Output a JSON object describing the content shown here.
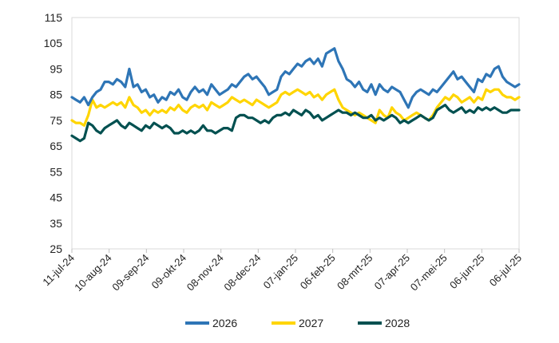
{
  "chart_data": {
    "type": "line",
    "title": "",
    "xlabel": "",
    "ylabel": "",
    "ylim": [
      25,
      115
    ],
    "yticks": [
      25,
      35,
      45,
      55,
      65,
      75,
      85,
      95,
      105,
      115
    ],
    "grid": false,
    "legend": "bottom",
    "x_tick_labels": [
      "11-jul-24",
      "10-aug-24",
      "09-sep-24",
      "09-okt-24",
      "08-nov-24",
      "08-dec-24",
      "07-jan-25",
      "06-feb-25",
      "08-mrt-25",
      "07-apr-25",
      "07-mei-25",
      "06-jun-25",
      "06-jul-25"
    ],
    "x": [
      "11-jul-24",
      "15-jul-24",
      "18-jul-24",
      "21-jul-24",
      "25-jul-24",
      "28-jul-24",
      "01-aug-24",
      "04-aug-24",
      "07-aug-24",
      "10-aug-24",
      "14-aug-24",
      "17-aug-24",
      "20-aug-24",
      "24-aug-24",
      "27-aug-24",
      "31-aug-24",
      "03-sep-24",
      "06-sep-24",
      "09-sep-24",
      "13-sep-24",
      "16-sep-24",
      "19-sep-24",
      "23-sep-24",
      "26-sep-24",
      "29-sep-24",
      "03-okt-24",
      "06-okt-24",
      "09-okt-24",
      "13-okt-24",
      "16-okt-24",
      "19-okt-24",
      "23-okt-24",
      "26-okt-24",
      "30-okt-24",
      "02-nov-24",
      "05-nov-24",
      "08-nov-24",
      "12-nov-24",
      "15-nov-24",
      "18-nov-24",
      "22-nov-24",
      "25-nov-24",
      "28-nov-24",
      "02-dec-24",
      "05-dec-24",
      "08-dec-24",
      "12-dec-24",
      "15-dec-24",
      "19-dec-24",
      "22-dec-24",
      "25-dec-24",
      "29-dec-24",
      "01-jan-25",
      "04-jan-25",
      "07-jan-25",
      "11-jan-25",
      "14-jan-25",
      "17-jan-25",
      "21-jan-25",
      "24-jan-25",
      "27-jan-25",
      "31-jan-25",
      "03-feb-25",
      "06-feb-25",
      "10-feb-25",
      "13-feb-25",
      "17-feb-25",
      "20-feb-25",
      "23-feb-25",
      "27-feb-25",
      "02-mrt-25",
      "05-mrt-25",
      "08-mrt-25",
      "12-mrt-25",
      "15-mrt-25",
      "18-mrt-25",
      "22-mrt-25",
      "25-mrt-25",
      "28-mrt-25",
      "01-apr-25",
      "04-apr-25",
      "07-apr-25",
      "11-apr-25",
      "14-apr-25",
      "17-apr-25",
      "21-apr-25",
      "24-apr-25",
      "27-apr-25",
      "01-mei-25",
      "04-mei-25",
      "07-mei-25",
      "11-mei-25",
      "14-mei-25",
      "17-mei-25",
      "21-mei-25",
      "24-mei-25",
      "28-mei-25",
      "31-mei-25",
      "03-jun-25",
      "06-jun-25",
      "10-jun-25",
      "13-jun-25",
      "16-jun-25",
      "20-jun-25",
      "23-jun-25",
      "26-jun-25",
      "30-jun-25",
      "03-jul-25",
      "06-jul-25",
      "09-jul-25"
    ],
    "series": [
      {
        "name": "2026",
        "color": "#2E75B6",
        "values": [
          84,
          83,
          82,
          84,
          81,
          84,
          86,
          87,
          90,
          90,
          89,
          91,
          90,
          88,
          95,
          88,
          89,
          86,
          87,
          84,
          85,
          82,
          84,
          83,
          86,
          85,
          87,
          84,
          83,
          86,
          88,
          86,
          87,
          85,
          89,
          87,
          85,
          86,
          87,
          89,
          88,
          90,
          92,
          93,
          91,
          92,
          90,
          88,
          85,
          86,
          87,
          92,
          94,
          93,
          95,
          97,
          96,
          98,
          99,
          97,
          99,
          96,
          101,
          102,
          103,
          98,
          95,
          91,
          90,
          88,
          90,
          87,
          86,
          89,
          85,
          89,
          87,
          86,
          88,
          87,
          86,
          83,
          80,
          84,
          86,
          87,
          86,
          85,
          87,
          86,
          88,
          90,
          92,
          94,
          91,
          92,
          90,
          88,
          86,
          91,
          90,
          93,
          92,
          95,
          96,
          92,
          90,
          89,
          88,
          89
        ]
      },
      {
        "name": "2027",
        "color": "#FFD500",
        "values": [
          75,
          74,
          74,
          73,
          77,
          83,
          80,
          81,
          80,
          81,
          82,
          81,
          82,
          80,
          84,
          81,
          80,
          78,
          79,
          77,
          79,
          78,
          79,
          78,
          80,
          79,
          81,
          79,
          78,
          80,
          81,
          80,
          81,
          79,
          82,
          81,
          80,
          81,
          82,
          84,
          83,
          82,
          83,
          82,
          81,
          83,
          82,
          81,
          80,
          81,
          82,
          85,
          86,
          85,
          86,
          87,
          86,
          85,
          86,
          84,
          85,
          83,
          85,
          86,
          87,
          83,
          80,
          79,
          78,
          77,
          78,
          77,
          76,
          75,
          74,
          79,
          77,
          76,
          80,
          78,
          77,
          75,
          76,
          77,
          78,
          77,
          76,
          75,
          77,
          80,
          82,
          84,
          83,
          85,
          84,
          82,
          83,
          84,
          82,
          84,
          83,
          87,
          86,
          87,
          87,
          85,
          84,
          84,
          83,
          84
        ]
      },
      {
        "name": "2028",
        "color": "#005050",
        "values": [
          69,
          68,
          67,
          68,
          74,
          73,
          71,
          70,
          72,
          73,
          74,
          75,
          73,
          72,
          74,
          73,
          72,
          71,
          73,
          72,
          74,
          73,
          72,
          73,
          72,
          70,
          70,
          71,
          70,
          71,
          70,
          71,
          73,
          71,
          71,
          70,
          71,
          72,
          72,
          71,
          76,
          77,
          77,
          76,
          76,
          75,
          74,
          75,
          74,
          76,
          77,
          77,
          78,
          77,
          79,
          78,
          77,
          79,
          78,
          76,
          77,
          75,
          76,
          77,
          78,
          79,
          78,
          78,
          77,
          78,
          77,
          76,
          76,
          77,
          75,
          76,
          75,
          76,
          77,
          76,
          74,
          75,
          74,
          75,
          76,
          77,
          76,
          75,
          76,
          79,
          80,
          81,
          79,
          78,
          79,
          80,
          78,
          79,
          78,
          80,
          79,
          80,
          79,
          80,
          79,
          78,
          78,
          79,
          79,
          79
        ]
      }
    ]
  }
}
